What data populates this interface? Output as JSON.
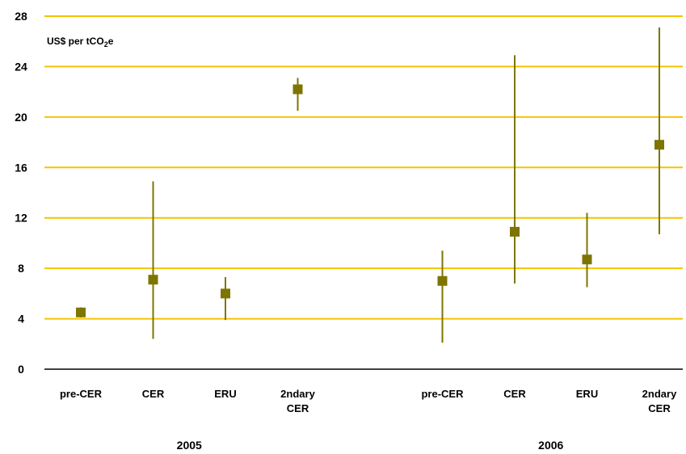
{
  "chart_data": {
    "type": "scatter",
    "subtype": "range-with-marker",
    "unit_label_main": "US$ per tCO",
    "unit_label_sub": "2",
    "unit_label_end": "e",
    "yticks": [
      "0",
      "4",
      "8",
      "12",
      "16",
      "20",
      "24",
      "28"
    ],
    "ylim": [
      0,
      28
    ],
    "grid": true,
    "colors": {
      "grid": "#f5c400",
      "marker": "#7d7500",
      "axis": "#000000"
    },
    "groups": [
      {
        "name": "2005",
        "points": [
          {
            "category": [
              "pre-CER"
            ],
            "value": 4.5,
            "low": 4.1,
            "high": 4.9
          },
          {
            "category": [
              "CER"
            ],
            "value": 7.1,
            "low": 2.4,
            "high": 14.9
          },
          {
            "category": [
              "ERU"
            ],
            "value": 6.0,
            "low": 3.9,
            "high": 7.3
          },
          {
            "category": [
              "2ndary",
              "CER"
            ],
            "value": 22.2,
            "low": 20.5,
            "high": 23.1
          }
        ]
      },
      {
        "name": "2006",
        "points": [
          {
            "category": [
              "pre-CER"
            ],
            "value": 7.0,
            "low": 2.1,
            "high": 9.4
          },
          {
            "category": [
              "CER"
            ],
            "value": 10.9,
            "low": 6.8,
            "high": 24.9
          },
          {
            "category": [
              "ERU"
            ],
            "value": 8.7,
            "low": 6.5,
            "high": 12.4
          },
          {
            "category": [
              "2ndary",
              "CER"
            ],
            "value": 17.8,
            "low": 10.7,
            "high": 27.1
          }
        ]
      }
    ]
  }
}
